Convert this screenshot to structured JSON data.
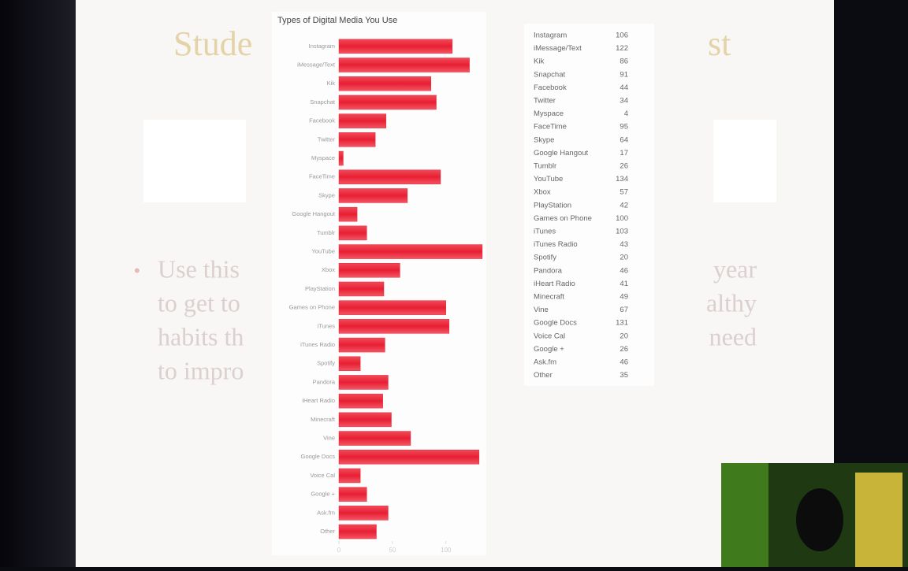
{
  "slide": {
    "title_left": "Stude",
    "title_right": "st",
    "bullet_left": [
      "Use this",
      "to get to",
      "habits th",
      "to impro"
    ],
    "bullet_right": [
      "year",
      "althy",
      "need"
    ]
  },
  "chart_data": {
    "type": "bar",
    "orientation": "horizontal",
    "title": "Types of Digital Media You Use",
    "categories": [
      "Instagram",
      "iMessage/Text",
      "Kik",
      "Snapchat",
      "Facebook",
      "Twitter",
      "Myspace",
      "FaceTime",
      "Skype",
      "Google Hangout",
      "Tumblr",
      "YouTube",
      "Xbox",
      "PlayStation",
      "Games on Phone",
      "iTunes",
      "iTunes Radio",
      "Spotify",
      "Pandora",
      "iHeart Radio",
      "Minecraft",
      "Vine",
      "Google Docs",
      "Voice Cal",
      "Google +",
      "Ask.fm",
      "Other"
    ],
    "values": [
      106,
      122,
      86,
      91,
      44,
      34,
      4,
      95,
      64,
      17,
      26,
      134,
      57,
      42,
      100,
      103,
      43,
      20,
      46,
      41,
      49,
      67,
      131,
      20,
      26,
      46,
      35
    ],
    "color": "#ea2a3e",
    "xlim": [
      0,
      140
    ],
    "xticks": [
      0,
      50,
      100
    ],
    "grid": false
  }
}
